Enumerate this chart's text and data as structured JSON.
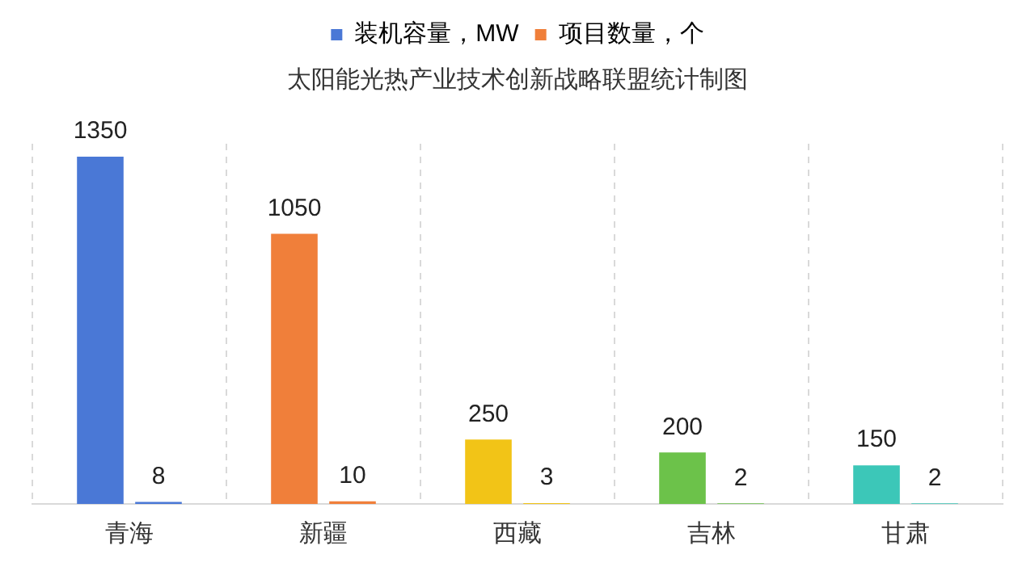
{
  "chart_data": {
    "type": "bar",
    "title": "太阳能光热产业技术创新战略联盟统计制图",
    "categories": [
      "青海",
      "新疆",
      "西藏",
      "吉林",
      "甘肃"
    ],
    "series": [
      {
        "name": "装机容量，MW",
        "color": "#4a78d6",
        "colors": [
          "#4a78d6",
          "#f07f3a",
          "#f2c417",
          "#6cc24a",
          "#3cc7b8"
        ],
        "values": [
          1350,
          1050,
          250,
          200,
          150
        ]
      },
      {
        "name": "项目数量，个",
        "color": "#f07f3a",
        "colors": [
          "#4a78d6",
          "#f07f3a",
          "#f2c417",
          "#6cc24a",
          "#3cc7b8"
        ],
        "values": [
          8,
          10,
          3,
          2,
          2
        ]
      }
    ],
    "data_labels": true,
    "legend": "top",
    "grid": "x"
  }
}
